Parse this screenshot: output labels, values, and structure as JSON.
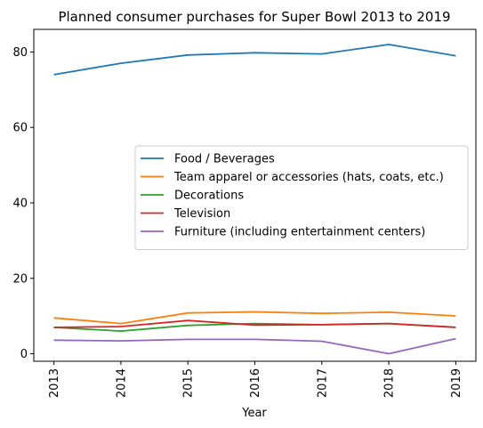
{
  "chart_data": {
    "type": "line",
    "title": "Planned consumer purchases for Super Bowl 2013 to 2019",
    "xlabel": "Year",
    "ylabel": "",
    "x": [
      "2013",
      "2014",
      "2015",
      "2016",
      "2017",
      "2018",
      "2019"
    ],
    "ylim": [
      -2,
      86
    ],
    "yticks": [
      0,
      20,
      40,
      60,
      80
    ],
    "grid": false,
    "legend_position": "center-right",
    "series": [
      {
        "name": "Food / Beverages",
        "color": "#1f77b4",
        "values": [
          74,
          77,
          79.2,
          79.8,
          79.5,
          82,
          79
        ]
      },
      {
        "name": "Team apparel or accessories (hats, coats, etc.)",
        "color": "#ff7f0e",
        "values": [
          9.5,
          8,
          10.8,
          11.1,
          10.7,
          11,
          10
        ]
      },
      {
        "name": "Decorations",
        "color": "#2ca02c",
        "values": [
          7,
          6,
          7.5,
          8,
          7.7,
          8,
          7
        ]
      },
      {
        "name": "Television",
        "color": "#d62728",
        "values": [
          7,
          7.2,
          8.8,
          7.6,
          7.7,
          8,
          7
        ]
      },
      {
        "name": "Furniture (including entertainment centers)",
        "color": "#9467bd",
        "values": [
          3.6,
          3.4,
          3.8,
          3.8,
          3.3,
          0,
          4
        ]
      }
    ]
  }
}
